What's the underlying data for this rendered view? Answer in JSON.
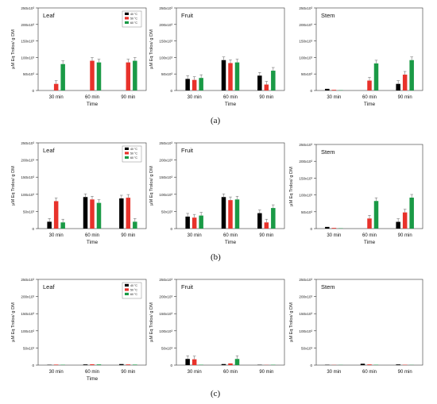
{
  "colors": {
    "s40": "#000000",
    "s50": "#e8322b",
    "s60": "#1a9a46",
    "axis": "#333333"
  },
  "labels": {
    "a": "(a)",
    "b": "(b)",
    "c": "(c)"
  },
  "chart_data": [
    {
      "type": "bar",
      "title": "Leaf",
      "xlabel": "Time",
      "ylabel": "µM Eq Trolox/ g DM",
      "categories": [
        "30 min",
        "60 min",
        "90 min"
      ],
      "yticks": [
        "0",
        "50x10³",
        "100x10³",
        "150x10³",
        "200x10³",
        "250x10³"
      ],
      "ylim": [
        0,
        250000
      ],
      "legend_position": "top-right",
      "series": [
        {
          "name": "40 °C",
          "values": [
            0,
            0,
            0
          ]
        },
        {
          "name": "50 °C",
          "values": [
            20000,
            90000,
            85000
          ]
        },
        {
          "name": "60 °C",
          "values": [
            80000,
            85000,
            90000
          ]
        }
      ]
    },
    {
      "type": "bar",
      "title": "Fruit",
      "xlabel": "Time",
      "ylabel": "µM Eq Trolox/ g DM",
      "categories": [
        "30 min",
        "60 min",
        "90 min"
      ],
      "yticks": [
        "0",
        "50x10³",
        "100x10³",
        "150x10³",
        "200x10³",
        "250x10³"
      ],
      "ylim": [
        0,
        250000
      ],
      "series": [
        {
          "values": [
            35000,
            92000,
            45000
          ]
        },
        {
          "values": [
            32000,
            83000,
            18000
          ]
        },
        {
          "values": [
            38000,
            85000,
            60000
          ]
        }
      ]
    },
    {
      "type": "bar",
      "title": "Stem",
      "xlabel": "Time",
      "ylabel": "",
      "categories": [
        "30 min",
        "60 min",
        "90 min"
      ],
      "yticks": [
        "0",
        "50x10³",
        "100x10³",
        "150x10³",
        "200x10³",
        "250x10³"
      ],
      "ylim": [
        0,
        250000
      ],
      "series": [
        {
          "values": [
            5000,
            0,
            20000
          ]
        },
        {
          "values": [
            2000,
            30000,
            48000
          ]
        },
        {
          "values": [
            1000,
            82000,
            92000
          ]
        }
      ]
    },
    {
      "type": "bar",
      "title": "Leaf",
      "xlabel": "Time",
      "ylabel": "µM Eq Trolox/ g DM",
      "categories": [
        "30 min",
        "60 min",
        "90 min"
      ],
      "yticks": [
        "0",
        "50x10³",
        "100x10³",
        "150x10³",
        "200x10³",
        "250x10³"
      ],
      "ylim": [
        0,
        250000
      ],
      "legend_position": "top-right",
      "series": [
        {
          "name": "40 °C",
          "values": [
            20000,
            92000,
            88000
          ]
        },
        {
          "name": "50 °C",
          "values": [
            80000,
            85000,
            90000
          ]
        },
        {
          "name": "60 °C",
          "values": [
            18000,
            75000,
            20000
          ]
        }
      ]
    },
    {
      "type": "bar",
      "title": "Fruit",
      "xlabel": "Time",
      "ylabel": "µM Eq Trolox/ g DM",
      "categories": [
        "30 min",
        "60 min",
        "90 min"
      ],
      "yticks": [
        "0",
        "50x10³",
        "100x10³",
        "150x10³",
        "200x10³",
        "250x10³"
      ],
      "ylim": [
        0,
        250000
      ],
      "series": [
        {
          "values": [
            35000,
            92000,
            45000
          ]
        },
        {
          "values": [
            32000,
            83000,
            18000
          ]
        },
        {
          "values": [
            38000,
            85000,
            60000
          ]
        }
      ]
    },
    {
      "type": "bar",
      "title": "Stem",
      "xlabel": "Time",
      "ylabel": "µM Eq Trolox/ g DM",
      "categories": [
        "30 min",
        "60 min",
        "90 min"
      ],
      "yticks": [
        "0",
        "50x10³",
        "100x10³",
        "150x10³",
        "200x10³",
        "250x10³"
      ],
      "ylim": [
        0,
        250000
      ],
      "series": [
        {
          "values": [
            5000,
            0,
            20000
          ]
        },
        {
          "values": [
            2000,
            30000,
            48000
          ]
        },
        {
          "values": [
            1000,
            82000,
            92000
          ]
        }
      ]
    },
    {
      "type": "bar",
      "title": "Leaf",
      "xlabel": "Time",
      "ylabel": "µM Eq Trolox/ g DM",
      "categories": [
        "30 min",
        "60 min",
        "90 min"
      ],
      "yticks": [
        "0",
        "50x10³",
        "100x10³",
        "150x10³",
        "200x10³",
        "250x10³"
      ],
      "ylim": [
        0,
        250000
      ],
      "legend_position": "top-right",
      "series": [
        {
          "name": "40 °C",
          "values": [
            1000,
            2000,
            3000
          ]
        },
        {
          "name": "50 °C",
          "values": [
            1500,
            2500,
            2000
          ]
        },
        {
          "name": "60 °C",
          "values": [
            1000,
            2000,
            1500
          ]
        }
      ]
    },
    {
      "type": "bar",
      "title": "Fruit",
      "xlabel": "",
      "ylabel": "µM Eq Trolox/ g DM",
      "categories": [
        "30 min",
        "60 min",
        "90 min"
      ],
      "yticks": [
        "0",
        "50x10³",
        "100x10³",
        "150x10³",
        "200x10³",
        "250x10³"
      ],
      "ylim": [
        0,
        250000
      ],
      "series": [
        {
          "values": [
            18000,
            3000,
            1000
          ]
        },
        {
          "values": [
            17000,
            5000,
            500
          ]
        },
        {
          "values": [
            1000,
            18000,
            1000
          ]
        }
      ]
    },
    {
      "type": "bar",
      "title": "Stem",
      "xlabel": "",
      "ylabel": "µM Eq Trolox/ g DM",
      "categories": [
        "30 min",
        "60 min",
        "90 min"
      ],
      "yticks": [
        "0",
        "50x10³",
        "100x10³",
        "150x10³",
        "200x10³",
        "250x10³"
      ],
      "ylim": [
        0,
        250000
      ],
      "series": [
        {
          "values": [
            1000,
            4000,
            2000
          ]
        },
        {
          "values": [
            500,
            2000,
            1000
          ]
        },
        {
          "values": [
            500,
            1000,
            500
          ]
        }
      ]
    }
  ]
}
